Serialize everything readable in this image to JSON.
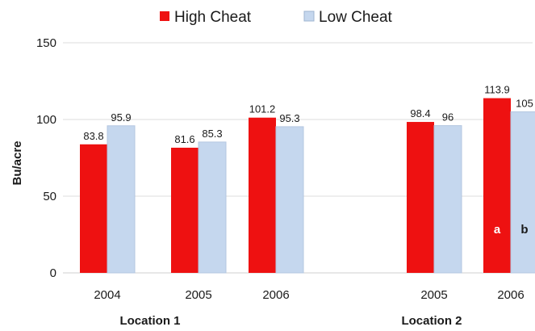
{
  "chart_data": {
    "type": "bar",
    "title": "",
    "ylabel": "Bu/acre",
    "xlabel": "",
    "ylim": [
      0,
      150
    ],
    "yticks": [
      0,
      50,
      100,
      150
    ],
    "grid": true,
    "legend_position": "top",
    "categories": [
      {
        "label": "2004",
        "group": "Location 1"
      },
      {
        "label": "2005",
        "group": "Location 1"
      },
      {
        "label": "2006",
        "group": "Location 1"
      },
      {
        "label": "2005",
        "group": "Location 2"
      },
      {
        "label": "2006",
        "group": "Location 2"
      }
    ],
    "groups": [
      "Location 1",
      "Location 2"
    ],
    "series": [
      {
        "name": "High Cheat",
        "color": "#ee1111",
        "values": [
          83.8,
          81.6,
          101.2,
          98.4,
          113.9
        ],
        "labels": [
          "83.8",
          "81.6",
          "101.2",
          "98.4",
          "113.9"
        ]
      },
      {
        "name": "Low Cheat",
        "color": "#c5d7ee",
        "values": [
          95.9,
          85.3,
          95.3,
          96,
          105
        ],
        "labels": [
          "95.9",
          "85.3",
          "95.3",
          "96",
          "105"
        ]
      }
    ],
    "annotations": [
      {
        "category_index": 4,
        "series_index": 0,
        "text": "a",
        "color": "#ffffff"
      },
      {
        "category_index": 4,
        "series_index": 1,
        "text": "b",
        "color": "#1a1a1a"
      }
    ]
  }
}
